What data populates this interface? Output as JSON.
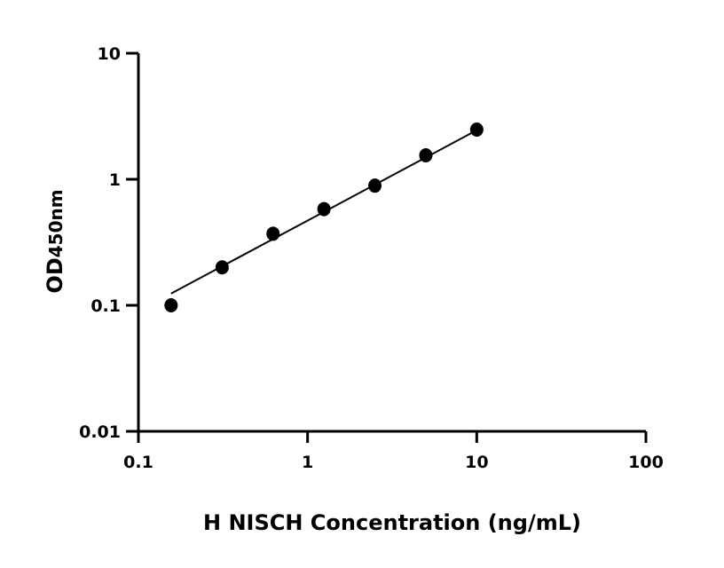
{
  "chart_data": {
    "type": "scatter",
    "title": "",
    "xlabel": "H NISCH Concentration (ng/mL)",
    "ylabel_main": "OD",
    "ylabel_sub": "450nm",
    "x_scale": "log",
    "y_scale": "log",
    "xlim": [
      0.1,
      100
    ],
    "ylim": [
      0.01,
      10
    ],
    "x_ticks": [
      "0.1",
      "1",
      "10",
      "100"
    ],
    "y_ticks": [
      "0.01",
      "0.1",
      "1",
      "10"
    ],
    "grid": false,
    "x": [
      0.156,
      0.3125,
      0.625,
      1.25,
      2.5,
      5,
      10
    ],
    "y": [
      0.1,
      0.2,
      0.37,
      0.58,
      0.89,
      1.55,
      2.48
    ],
    "fit_line": {
      "x": [
        0.156,
        10
      ],
      "y": [
        0.124,
        2.45
      ]
    },
    "marker_color": "#000000",
    "line_color": "#000000"
  }
}
